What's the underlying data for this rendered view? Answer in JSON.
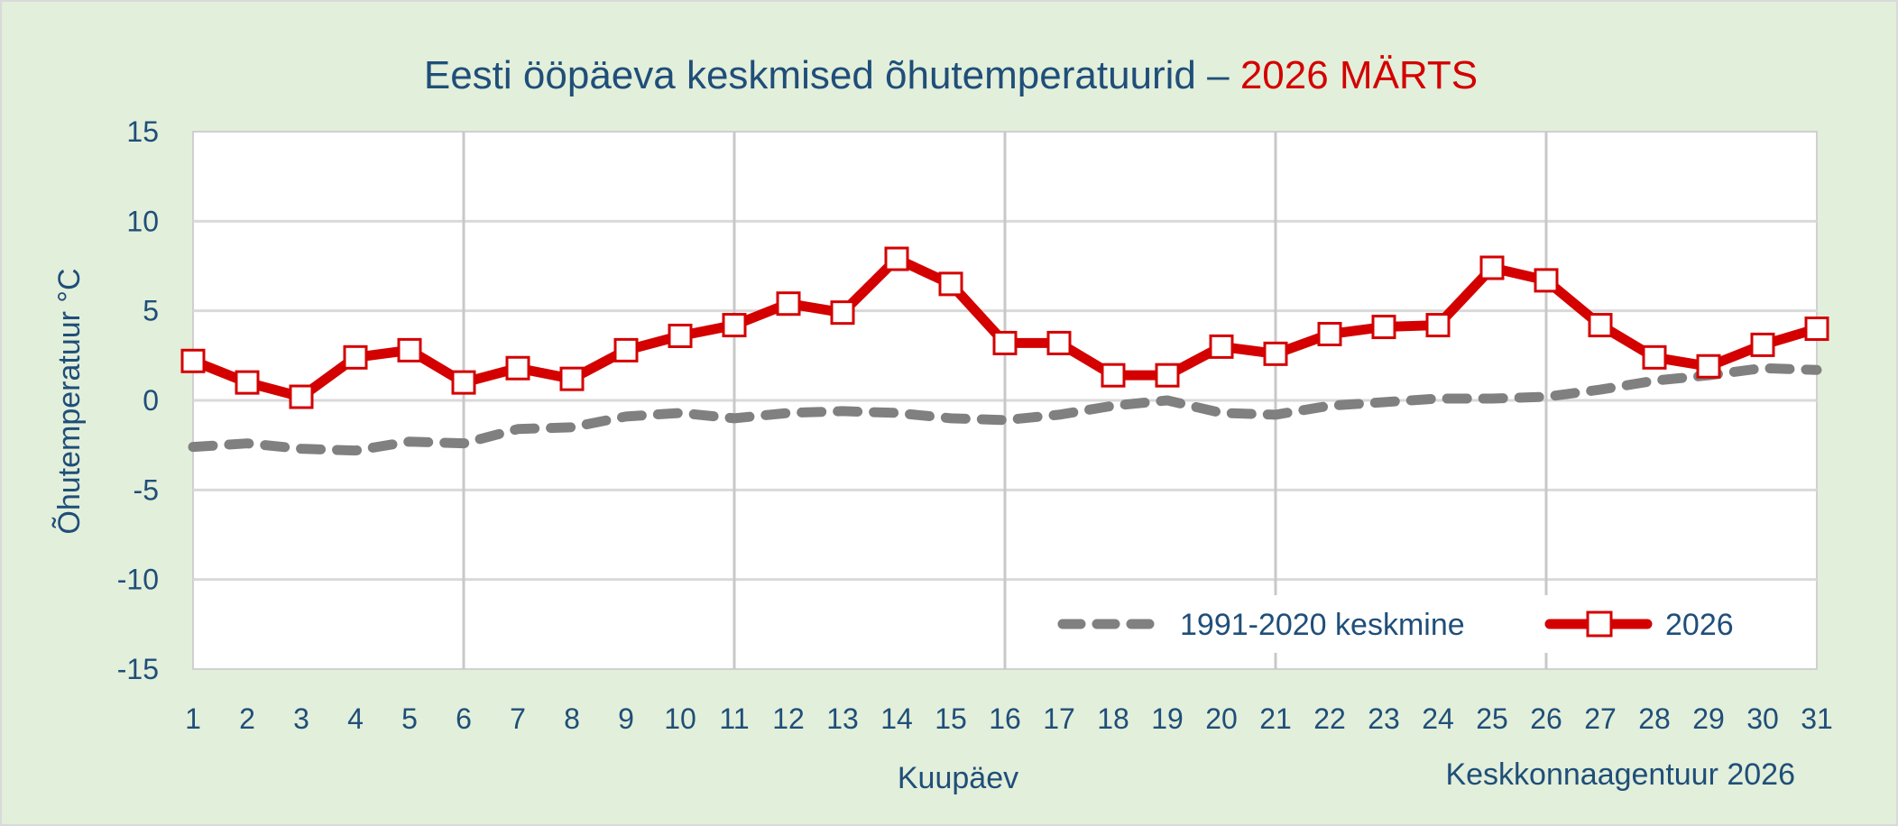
{
  "title": {
    "main": "Eesti ööpäeva keskmised õhutemperatuurid – ",
    "accent": "2026 MÄRTS"
  },
  "footer": {
    "source": "Keskkonnaagentuur 2026"
  },
  "colors": {
    "background": "#e2efda",
    "plot_background": "#ffffff",
    "text": "#1f4e79",
    "accent": "#d40000",
    "series_2026": "#d40000",
    "series_normal": "#808080",
    "grid": "#d9d9d9"
  },
  "chart_data": {
    "type": "line",
    "title": "Eesti ööpäeva keskmised õhutemperatuurid – 2026 MÄRTS",
    "xlabel": "Kuupäev",
    "ylabel": "Õhutemperatuur °C",
    "ylim": [
      -15,
      15
    ],
    "yticks": [
      15,
      10,
      5,
      0,
      -5,
      -10,
      -15
    ],
    "x": [
      1,
      2,
      3,
      4,
      5,
      6,
      7,
      8,
      9,
      10,
      11,
      12,
      13,
      14,
      15,
      16,
      17,
      18,
      19,
      20,
      21,
      22,
      23,
      24,
      25,
      26,
      27,
      28,
      29,
      30,
      31
    ],
    "grid": {
      "horizontal": true,
      "vertical_at": [
        6,
        11,
        16,
        21,
        26
      ]
    },
    "legend_position": "lower right inside",
    "series": [
      {
        "name": "1991-2020 keskmine",
        "style": "dashed",
        "color": "#808080",
        "values": [
          -2.6,
          -2.4,
          -2.7,
          -2.8,
          -2.3,
          -2.4,
          -1.6,
          -1.5,
          -0.9,
          -0.7,
          -1.0,
          -0.7,
          -0.6,
          -0.7,
          -1.0,
          -1.1,
          -0.8,
          -0.3,
          0.0,
          -0.7,
          -0.8,
          -0.3,
          -0.1,
          0.1,
          0.1,
          0.2,
          0.6,
          1.1,
          1.4,
          1.8,
          1.7
        ]
      },
      {
        "name": "2026",
        "style": "solid-square-markers",
        "color": "#d40000",
        "values": [
          2.2,
          1.0,
          0.2,
          2.4,
          2.8,
          1.0,
          1.8,
          1.2,
          2.8,
          3.6,
          4.2,
          5.4,
          4.9,
          7.9,
          6.5,
          3.2,
          3.2,
          1.4,
          1.4,
          3.0,
          2.6,
          3.7,
          4.1,
          4.2,
          7.4,
          6.7,
          4.2,
          2.4,
          1.9,
          3.1,
          4.0
        ]
      }
    ]
  }
}
